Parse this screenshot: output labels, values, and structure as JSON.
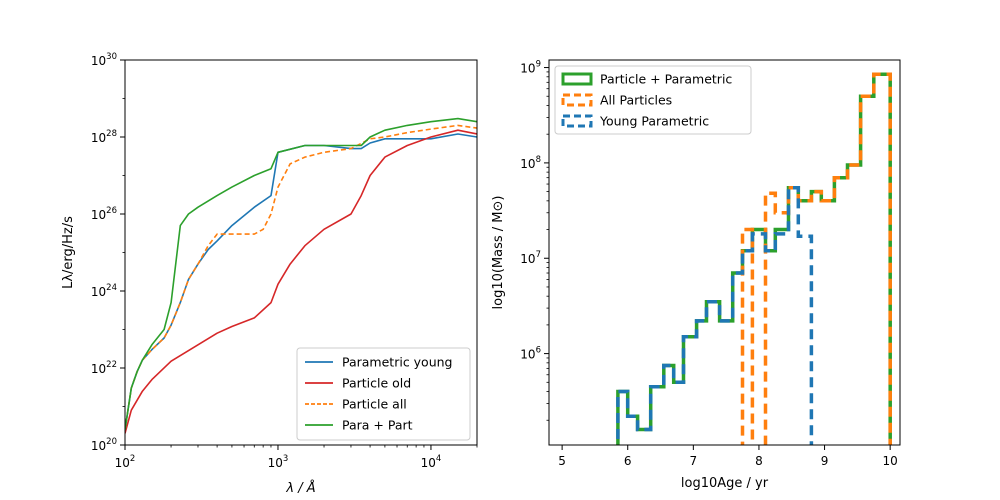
{
  "chart_data": [
    {
      "type": "line",
      "xscale": "log",
      "yscale": "log",
      "xlim": [
        100,
        20000
      ],
      "ylim": [
        1e+20,
        1e+30
      ],
      "xlabel": "λ / Å",
      "ylabel": "Lλ/erg/Hz/s",
      "x_ticks": [
        {
          "value": 100,
          "base": "10",
          "exp": "2"
        },
        {
          "value": 1000,
          "base": "10",
          "exp": "3"
        },
        {
          "value": 10000,
          "base": "10",
          "exp": "4"
        }
      ],
      "y_ticks": [
        {
          "value": 1e+20,
          "base": "10",
          "exp": "20"
        },
        {
          "value": 1e+22,
          "base": "10",
          "exp": "22"
        },
        {
          "value": 1e+24,
          "base": "10",
          "exp": "24"
        },
        {
          "value": 1e+26,
          "base": "10",
          "exp": "26"
        },
        {
          "value": 1e+28,
          "base": "10",
          "exp": "28"
        },
        {
          "value": 1e+30,
          "base": "10",
          "exp": "30"
        }
      ],
      "legend_position": "lower-right",
      "series": [
        {
          "name": "Parametric young",
          "color": "#1f77b4",
          "dash": "solid",
          "points": [
            [
              100,
              2.5e+20
            ],
            [
              110,
              3e+21
            ],
            [
              120,
              8e+21
            ],
            [
              130,
              1.6e+22
            ],
            [
              150,
              3e+22
            ],
            [
              180,
              6e+22
            ],
            [
              200,
              1.3e+23
            ],
            [
              230,
              5e+23
            ],
            [
              260,
              2e+24
            ],
            [
              300,
              5e+24
            ],
            [
              350,
              1.2e+25
            ],
            [
              400,
              2e+25
            ],
            [
              500,
              5e+25
            ],
            [
              700,
              1.5e+26
            ],
            [
              900,
              3e+26
            ],
            [
              1000,
              4e+27
            ],
            [
              1500,
              6e+27
            ],
            [
              2000,
              6e+27
            ],
            [
              3000,
              5e+27
            ],
            [
              3500,
              5e+27
            ],
            [
              4000,
              7e+27
            ],
            [
              5000,
              9e+27
            ],
            [
              7000,
              9e+27
            ],
            [
              10000,
              9e+27
            ],
            [
              15000,
              1.2e+28
            ],
            [
              20000,
              1e+28
            ]
          ]
        },
        {
          "name": "Particle old",
          "color": "#d62728",
          "dash": "solid",
          "points": [
            [
              100,
              2e+20
            ],
            [
              110,
              8e+20
            ],
            [
              130,
              2.5e+21
            ],
            [
              150,
              5e+21
            ],
            [
              200,
              1.5e+22
            ],
            [
              300,
              4e+22
            ],
            [
              400,
              8e+22
            ],
            [
              500,
              1.2e+23
            ],
            [
              700,
              2e+23
            ],
            [
              900,
              5e+23
            ],
            [
              1000,
              1.5e+24
            ],
            [
              1200,
              5e+24
            ],
            [
              1500,
              1.5e+25
            ],
            [
              2000,
              4e+25
            ],
            [
              3000,
              1e+26
            ],
            [
              3500,
              3e+26
            ],
            [
              4000,
              1e+27
            ],
            [
              5000,
              3e+27
            ],
            [
              7000,
              6e+27
            ],
            [
              10000,
              1e+28
            ],
            [
              15000,
              1.5e+28
            ],
            [
              20000,
              1.2e+28
            ]
          ]
        },
        {
          "name": "Particle all",
          "color": "#ff7f0e",
          "dash": "dashed",
          "points": [
            [
              100,
              2.5e+20
            ],
            [
              110,
              3e+21
            ],
            [
              120,
              8e+21
            ],
            [
              130,
              1.6e+22
            ],
            [
              150,
              3e+22
            ],
            [
              180,
              6e+22
            ],
            [
              200,
              1.3e+23
            ],
            [
              230,
              5e+23
            ],
            [
              260,
              2e+24
            ],
            [
              300,
              5e+24
            ],
            [
              350,
              1.5e+25
            ],
            [
              400,
              3e+25
            ],
            [
              500,
              3e+25
            ],
            [
              700,
              3e+25
            ],
            [
              800,
              4e+25
            ],
            [
              900,
              1e+26
            ],
            [
              1000,
              5e+26
            ],
            [
              1200,
              2e+27
            ],
            [
              1500,
              3e+27
            ],
            [
              2000,
              4e+27
            ],
            [
              3000,
              5e+27
            ],
            [
              4000,
              9e+27
            ],
            [
              5000,
              1e+28
            ],
            [
              7000,
              1.3e+28
            ],
            [
              10000,
              1.6e+28
            ],
            [
              15000,
              2e+28
            ],
            [
              20000,
              1.7e+28
            ]
          ]
        },
        {
          "name": "Para + Part",
          "color": "#2ca02c",
          "dash": "solid",
          "points": [
            [
              100,
              2.5e+20
            ],
            [
              110,
              3e+21
            ],
            [
              120,
              8e+21
            ],
            [
              130,
              1.6e+22
            ],
            [
              150,
              4e+22
            ],
            [
              180,
              1e+23
            ],
            [
              200,
              5e+23
            ],
            [
              230,
              5e+25
            ],
            [
              260,
              1e+26
            ],
            [
              300,
              1.5e+26
            ],
            [
              400,
              3e+26
            ],
            [
              500,
              5e+26
            ],
            [
              700,
              1e+27
            ],
            [
              900,
              1.5e+27
            ],
            [
              1000,
              4e+27
            ],
            [
              1500,
              6e+27
            ],
            [
              2000,
              6e+27
            ],
            [
              3000,
              6e+27
            ],
            [
              3500,
              6e+27
            ],
            [
              4000,
              1e+28
            ],
            [
              5000,
              1.5e+28
            ],
            [
              7000,
              2e+28
            ],
            [
              10000,
              2.5e+28
            ],
            [
              15000,
              3e+28
            ],
            [
              20000,
              2.5e+28
            ]
          ]
        }
      ]
    },
    {
      "type": "histogram",
      "yscale": "log",
      "xlim": [
        4.8,
        10.15
      ],
      "ylim": [
        100000,
        1000000000
      ],
      "ylim_display": [
        110000,
        1200000000
      ],
      "xlabel": "log10Age / yr",
      "ylabel": "log10(Mass / M⊙)",
      "x_ticks": [
        5,
        6,
        7,
        8,
        9,
        10
      ],
      "y_ticks": [
        {
          "value": 1000000.0,
          "base": "10",
          "exp": "6"
        },
        {
          "value": 10000000.0,
          "base": "10",
          "exp": "7"
        },
        {
          "value": 100000000.0,
          "base": "10",
          "exp": "8"
        },
        {
          "value": 1000000000.0,
          "base": "10",
          "exp": "9"
        }
      ],
      "legend_position": "top-left",
      "bin_edges": [
        5.85,
        6.0,
        6.15,
        6.35,
        6.55,
        6.7,
        6.85,
        7.05,
        7.2,
        7.4,
        7.6,
        7.75,
        7.9,
        8.1,
        8.25,
        8.45,
        8.6,
        8.8,
        8.95,
        9.15,
        9.35,
        9.55,
        9.75,
        10.0
      ],
      "series": [
        {
          "name": "Particle + Parametric",
          "color": "#2ca02c",
          "dash": "solid",
          "values": [
            400000,
            220000,
            160000,
            450000,
            750000,
            500000,
            1500000,
            2200000,
            3500000,
            2200000,
            7000000,
            12000000,
            20000000,
            12000000,
            20000000,
            55000000,
            40000000,
            50000000,
            40000000,
            70000000,
            95000000,
            500000000,
            850000000
          ]
        },
        {
          "name": "All Particles",
          "color": "#ff7f0e",
          "dash": "dashed",
          "values": [
            0,
            0,
            0,
            0,
            0,
            0,
            0,
            0,
            0,
            0,
            0,
            20000000,
            0,
            48000000,
            30000000,
            55000000,
            40000000,
            50000000,
            40000000,
            70000000,
            95000000,
            500000000,
            850000000
          ]
        },
        {
          "name": "Young Parametric",
          "color": "#1f77b4",
          "dash": "dashed",
          "values": [
            400000,
            220000,
            160000,
            450000,
            750000,
            500000,
            1500000,
            2200000,
            3500000,
            2200000,
            7000000,
            12000000,
            18000000,
            12000000,
            18000000,
            55000000,
            17000000,
            0,
            0,
            0,
            0,
            0,
            0
          ]
        }
      ]
    }
  ]
}
